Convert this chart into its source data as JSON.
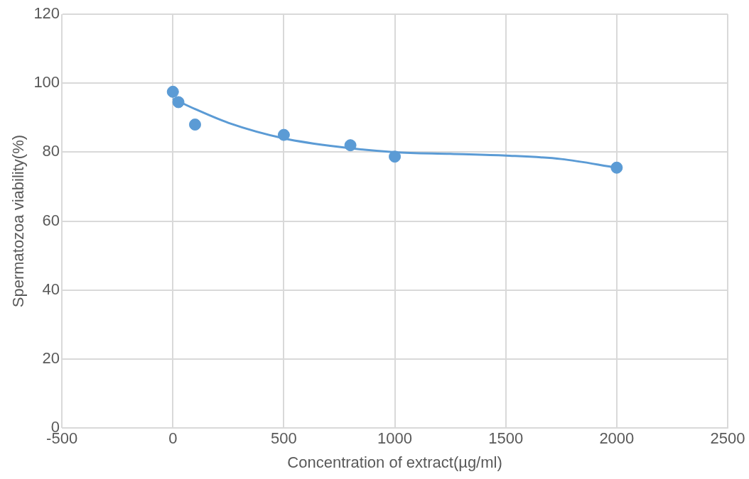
{
  "chart_data": {
    "type": "scatter",
    "xlabel": "Concentration of extract(µg/ml)",
    "ylabel": "Spermatozoa viability(%)",
    "xlim": [
      -500,
      2500
    ],
    "xticks": [
      -500,
      0,
      500,
      1000,
      1500,
      2000,
      2500
    ],
    "ylim": [
      0,
      120
    ],
    "yticks": [
      0,
      20,
      40,
      60,
      80,
      100,
      120
    ],
    "grid": true,
    "legend": false,
    "marker": "circle",
    "series": [
      {
        "type": "scatter",
        "color": "#5b9bd5",
        "x": [
          0,
          25,
          100,
          500,
          800,
          1000,
          2000
        ],
        "values": [
          97.5,
          94.5,
          88,
          85,
          82,
          78.7,
          75.5
        ]
      },
      {
        "type": "line",
        "color": "#5b9bd5",
        "line_style": "solid",
        "marker": "none",
        "x": [
          0,
          100,
          250,
          500,
          750,
          1000,
          1250,
          1500,
          1750,
          2000
        ],
        "values": [
          95.5,
          92.5,
          88.5,
          84,
          81.5,
          80,
          79.5,
          79,
          78,
          75.5
        ]
      }
    ]
  }
}
